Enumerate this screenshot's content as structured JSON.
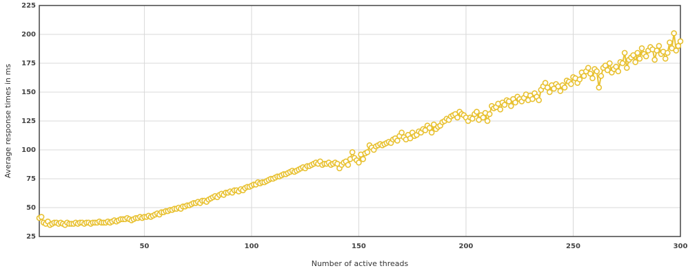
{
  "chart_data": {
    "type": "line",
    "xlabel": "Number of active threads",
    "ylabel": "Average response times in ms",
    "x": [
      1,
      2,
      3,
      4,
      5,
      6,
      7,
      8,
      9,
      10,
      11,
      12,
      13,
      14,
      15,
      16,
      17,
      18,
      19,
      20,
      21,
      22,
      23,
      24,
      25,
      26,
      27,
      28,
      29,
      30,
      31,
      32,
      33,
      34,
      35,
      36,
      37,
      38,
      39,
      40,
      41,
      42,
      43,
      44,
      45,
      46,
      47,
      48,
      49,
      50,
      51,
      52,
      53,
      54,
      55,
      56,
      57,
      58,
      59,
      60,
      61,
      62,
      63,
      64,
      65,
      66,
      67,
      68,
      69,
      70,
      71,
      72,
      73,
      74,
      75,
      76,
      77,
      78,
      79,
      80,
      81,
      82,
      83,
      84,
      85,
      86,
      87,
      88,
      89,
      90,
      91,
      92,
      93,
      94,
      95,
      96,
      97,
      98,
      99,
      100,
      101,
      102,
      103,
      104,
      105,
      106,
      107,
      108,
      109,
      110,
      111,
      112,
      113,
      114,
      115,
      116,
      117,
      118,
      119,
      120,
      121,
      122,
      123,
      124,
      125,
      126,
      127,
      128,
      129,
      130,
      131,
      132,
      133,
      134,
      135,
      136,
      137,
      138,
      139,
      140,
      141,
      142,
      143,
      144,
      145,
      146,
      147,
      148,
      149,
      150,
      151,
      152,
      153,
      154,
      155,
      156,
      157,
      158,
      159,
      160,
      161,
      162,
      163,
      164,
      165,
      166,
      167,
      168,
      169,
      170,
      171,
      172,
      173,
      174,
      175,
      176,
      177,
      178,
      179,
      180,
      181,
      182,
      183,
      184,
      185,
      186,
      187,
      188,
      189,
      190,
      191,
      192,
      193,
      194,
      195,
      196,
      197,
      198,
      199,
      200,
      201,
      202,
      203,
      204,
      205,
      206,
      207,
      208,
      209,
      210,
      211,
      212,
      213,
      214,
      215,
      216,
      217,
      218,
      219,
      220,
      221,
      222,
      223,
      224,
      225,
      226,
      227,
      228,
      229,
      230,
      231,
      232,
      233,
      234,
      235,
      236,
      237,
      238,
      239,
      240,
      241,
      242,
      243,
      244,
      245,
      246,
      247,
      248,
      249,
      250,
      251,
      252,
      253,
      254,
      255,
      256,
      257,
      258,
      259,
      260,
      261,
      262,
      263,
      264,
      265,
      266,
      267,
      268,
      269,
      270,
      271,
      272,
      273,
      274,
      275,
      276,
      277,
      278,
      279,
      280,
      281,
      282,
      283,
      284,
      285,
      286,
      287,
      288,
      289,
      290,
      291,
      292,
      293,
      294,
      295,
      296,
      297,
      298,
      299,
      300
    ],
    "series": [
      {
        "color": "#e8c131",
        "values": [
          41,
          42,
          37,
          36,
          38,
          35,
          36,
          37,
          37,
          36,
          37,
          36,
          35,
          37,
          36,
          36,
          36,
          37,
          36,
          37,
          37,
          36,
          37,
          37,
          36,
          37,
          37,
          37,
          38,
          37,
          37,
          37,
          38,
          37,
          38,
          39,
          38,
          39,
          40,
          40,
          40,
          41,
          40,
          39,
          40,
          41,
          41,
          42,
          41,
          42,
          42,
          43,
          42,
          43,
          44,
          45,
          44,
          46,
          46,
          47,
          47,
          48,
          48,
          49,
          49,
          50,
          49,
          51,
          51,
          52,
          52,
          53,
          54,
          54,
          55,
          54,
          56,
          56,
          55,
          57,
          58,
          59,
          60,
          59,
          61,
          62,
          61,
          63,
          63,
          64,
          63,
          65,
          65,
          64,
          66,
          65,
          67,
          68,
          68,
          69,
          70,
          70,
          72,
          71,
          72,
          72,
          73,
          74,
          75,
          75,
          76,
          77,
          77,
          78,
          79,
          79,
          80,
          81,
          82,
          81,
          82,
          83,
          84,
          85,
          84,
          86,
          86,
          87,
          88,
          89,
          88,
          90,
          87,
          88,
          88,
          89,
          87,
          88,
          89,
          88,
          84,
          87,
          89,
          90,
          87,
          92,
          98,
          93,
          91,
          89,
          96,
          92,
          97,
          98,
          104,
          102,
          100,
          103,
          104,
          105,
          104,
          105,
          106,
          107,
          106,
          109,
          110,
          108,
          112,
          115,
          111,
          109,
          113,
          110,
          115,
          112,
          113,
          116,
          115,
          118,
          117,
          121,
          119,
          115,
          122,
          118,
          120,
          121,
          124,
          125,
          127,
          126,
          129,
          130,
          131,
          128,
          133,
          131,
          130,
          128,
          125,
          128,
          127,
          131,
          133,
          126,
          130,
          128,
          132,
          125,
          131,
          138,
          136,
          137,
          140,
          135,
          141,
          139,
          143,
          142,
          138,
          144,
          141,
          146,
          144,
          142,
          145,
          148,
          143,
          147,
          144,
          149,
          146,
          143,
          152,
          155,
          158,
          154,
          150,
          156,
          153,
          157,
          155,
          151,
          156,
          154,
          160,
          159,
          157,
          163,
          162,
          158,
          161,
          167,
          164,
          168,
          171,
          166,
          162,
          170,
          168,
          154,
          164,
          171,
          173,
          169,
          175,
          167,
          170,
          172,
          168,
          176,
          175,
          184,
          171,
          178,
          180,
          182,
          176,
          184,
          179,
          188,
          183,
          181,
          186,
          189,
          187,
          178,
          186,
          190,
          183,
          185,
          179,
          184,
          193,
          188,
          201,
          186,
          190,
          194
        ]
      }
    ],
    "xlim": [
      1,
      300
    ],
    "xticks": [
      50,
      100,
      150,
      200,
      250,
      300
    ],
    "ylim": [
      25,
      225
    ],
    "yticks": [
      25,
      50,
      75,
      100,
      125,
      150,
      175,
      200,
      225
    ],
    "grid": true
  }
}
